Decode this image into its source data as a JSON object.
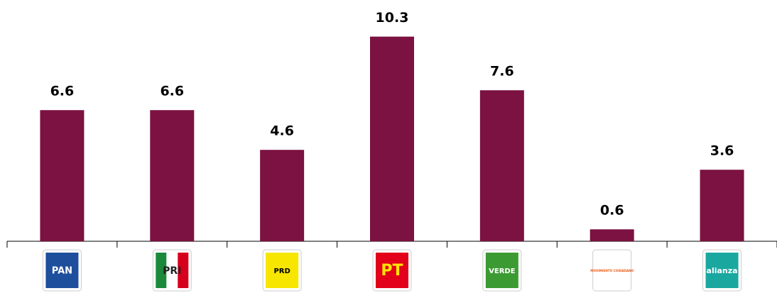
{
  "chart_data": {
    "type": "bar",
    "categories": [
      "PAN",
      "PRI",
      "PRD",
      "PT",
      "VERDE",
      "MOVIMIENTO CIUDADANO",
      "alianza"
    ],
    "values": [
      6.6,
      6.6,
      4.6,
      10.3,
      7.6,
      0.6,
      3.6
    ],
    "color": "#7b1241",
    "ylim": [
      0,
      12
    ]
  }
}
